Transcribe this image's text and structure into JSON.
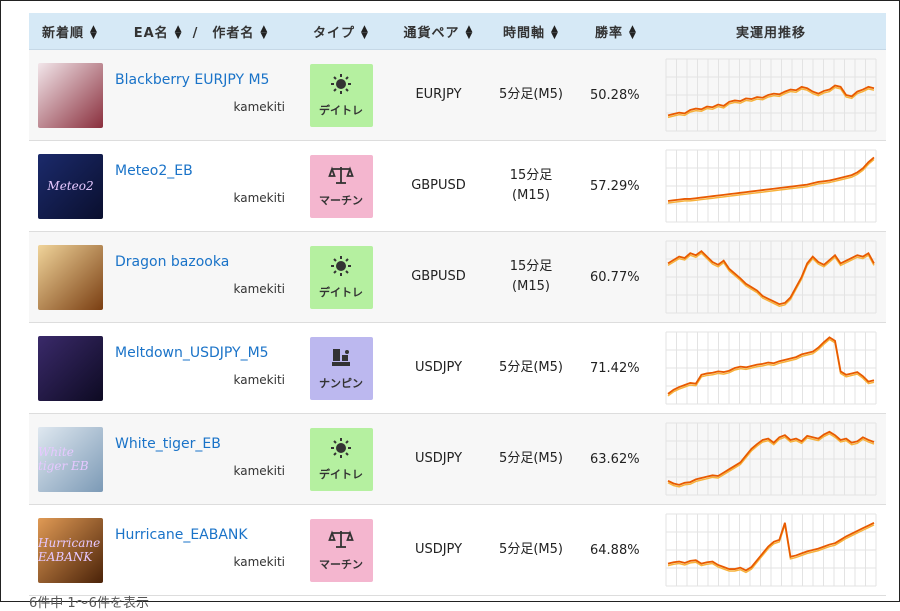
{
  "header": {
    "newest": "新着順",
    "ea_name": "EA名",
    "slash": "/",
    "author": "作者名",
    "type": "タイプ",
    "pair": "通貨ペア",
    "timeframe": "時間軸",
    "winrate": "勝率",
    "performance": "実運用推移"
  },
  "sort_icon": "sort-updown-icon",
  "rows": [
    {
      "name": "Blackberry EURJPY M5",
      "author": "kamekiti",
      "type": "デイトレ",
      "type_icon": "sun-icon",
      "type_color": "#b5f0a0",
      "pair": "EURJPY",
      "timeframe_1": "5分足(M5)",
      "timeframe_2": "",
      "winrate": "50.28%",
      "thumb_text": "",
      "thumb_colors": [
        "#f2e6ea",
        "#8a2f3d"
      ]
    },
    {
      "name": "Meteo2_EB",
      "author": "kamekiti",
      "type": "マーチン",
      "type_icon": "scale-icon",
      "type_color": "#f4b6cf",
      "pair": "GBPUSD",
      "timeframe_1": "15分足",
      "timeframe_2": "(M15)",
      "winrate": "57.29%",
      "thumb_text": "Meteo2",
      "thumb_colors": [
        "#1b2a6b",
        "#0a0f2e"
      ]
    },
    {
      "name": "Dragon bazooka",
      "author": "kamekiti",
      "type": "デイトレ",
      "type_icon": "sun-icon",
      "type_color": "#b5f0a0",
      "pair": "GBPUSD",
      "timeframe_1": "15分足",
      "timeframe_2": "(M15)",
      "winrate": "60.77%",
      "thumb_text": "",
      "thumb_colors": [
        "#f0d49a",
        "#7a3e12"
      ]
    },
    {
      "name": "Meltdown_USDJPY_M5",
      "author": "kamekiti",
      "type": "ナンピン",
      "type_icon": "stack-icon",
      "type_color": "#bcb8ef",
      "pair": "USDJPY",
      "timeframe_1": "5分足(M5)",
      "timeframe_2": "",
      "winrate": "71.42%",
      "thumb_text": "",
      "thumb_colors": [
        "#3a2a6a",
        "#0d0a22"
      ]
    },
    {
      "name": "White_tiger_EB",
      "author": "kamekiti",
      "type": "デイトレ",
      "type_icon": "sun-icon",
      "type_color": "#b5f0a0",
      "pair": "USDJPY",
      "timeframe_1": "5分足(M5)",
      "timeframe_2": "",
      "winrate": "63.62%",
      "thumb_text": "White tiger EB",
      "thumb_colors": [
        "#dfe8f0",
        "#7c9ab6"
      ]
    },
    {
      "name": "Hurricane_EABANK",
      "author": "kamekiti",
      "type": "マーチン",
      "type_icon": "scale-icon",
      "type_color": "#f4b6cf",
      "pair": "USDJPY",
      "timeframe_1": "5分足(M5)",
      "timeframe_2": "",
      "winrate": "64.88%",
      "thumb_text": "Hurricane EABANK",
      "thumb_colors": [
        "#e09a55",
        "#4a2208"
      ]
    }
  ],
  "equity_curves": [
    [
      0.2,
      0.22,
      0.24,
      0.23,
      0.28,
      0.3,
      0.29,
      0.33,
      0.32,
      0.36,
      0.34,
      0.4,
      0.42,
      0.41,
      0.45,
      0.44,
      0.47,
      0.46,
      0.5,
      0.52,
      0.51,
      0.55,
      0.58,
      0.57,
      0.62,
      0.6,
      0.55,
      0.52,
      0.56,
      0.58,
      0.64,
      0.62,
      0.5,
      0.48,
      0.55,
      0.58,
      0.62,
      0.6
    ],
    [
      0.28,
      0.29,
      0.3,
      0.31,
      0.31,
      0.32,
      0.33,
      0.34,
      0.35,
      0.36,
      0.37,
      0.38,
      0.39,
      0.4,
      0.41,
      0.42,
      0.43,
      0.44,
      0.45,
      0.46,
      0.47,
      0.48,
      0.49,
      0.5,
      0.51,
      0.52,
      0.54,
      0.56,
      0.57,
      0.58,
      0.6,
      0.62,
      0.64,
      0.66,
      0.7,
      0.76,
      0.85,
      0.92
    ],
    [
      0.7,
      0.75,
      0.8,
      0.78,
      0.85,
      0.82,
      0.88,
      0.8,
      0.72,
      0.68,
      0.74,
      0.62,
      0.55,
      0.48,
      0.4,
      0.35,
      0.3,
      0.22,
      0.18,
      0.14,
      0.1,
      0.12,
      0.2,
      0.35,
      0.5,
      0.7,
      0.8,
      0.72,
      0.68,
      0.75,
      0.82,
      0.7,
      0.74,
      0.78,
      0.82,
      0.8,
      0.85,
      0.7
    ],
    [
      0.12,
      0.18,
      0.22,
      0.25,
      0.28,
      0.27,
      0.4,
      0.42,
      0.43,
      0.45,
      0.44,
      0.46,
      0.5,
      0.52,
      0.51,
      0.53,
      0.55,
      0.56,
      0.58,
      0.57,
      0.6,
      0.62,
      0.64,
      0.66,
      0.7,
      0.72,
      0.74,
      0.8,
      0.88,
      0.95,
      0.9,
      0.45,
      0.4,
      0.42,
      0.44,
      0.38,
      0.3,
      0.32
    ],
    [
      0.18,
      0.14,
      0.12,
      0.15,
      0.16,
      0.2,
      0.22,
      0.24,
      0.26,
      0.25,
      0.3,
      0.35,
      0.4,
      0.45,
      0.55,
      0.65,
      0.72,
      0.78,
      0.8,
      0.74,
      0.82,
      0.85,
      0.78,
      0.8,
      0.76,
      0.84,
      0.82,
      0.8,
      0.86,
      0.9,
      0.85,
      0.78,
      0.8,
      0.74,
      0.76,
      0.82,
      0.78,
      0.75
    ],
    [
      0.3,
      0.32,
      0.33,
      0.31,
      0.34,
      0.35,
      0.3,
      0.32,
      0.33,
      0.28,
      0.25,
      0.22,
      0.22,
      0.24,
      0.2,
      0.25,
      0.35,
      0.45,
      0.55,
      0.62,
      0.65,
      0.9,
      0.4,
      0.42,
      0.45,
      0.48,
      0.5,
      0.52,
      0.55,
      0.58,
      0.6,
      0.65,
      0.7,
      0.74,
      0.78,
      0.82,
      0.86,
      0.9
    ]
  ],
  "footer": {
    "text": "6件中 1～6件を表示"
  },
  "colors": {
    "header_bg": "#d6e9f6",
    "link": "#1a73c8",
    "line": "#e85a00"
  }
}
